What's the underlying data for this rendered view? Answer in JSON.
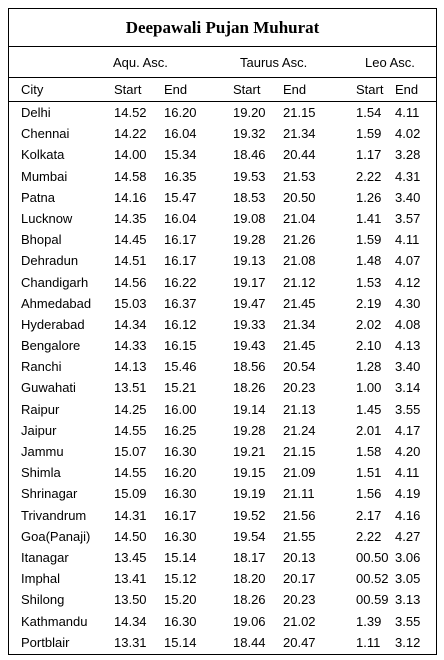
{
  "title": "Deepawali Pujan Muhurat",
  "ascendants": [
    "Aqu. Asc.",
    "Taurus Asc.",
    "Leo Asc."
  ],
  "columns": [
    "City",
    "Start",
    "End",
    "Start",
    "End",
    "Start",
    "End"
  ],
  "rows": [
    [
      "Delhi",
      "14.52",
      "16.20",
      "19.20",
      "21.15",
      "1.54",
      "4.11"
    ],
    [
      "Chennai",
      "14.22",
      "16.04",
      "19.32",
      "21.34",
      "1.59",
      "4.02"
    ],
    [
      "Kolkata",
      "14.00",
      "15.34",
      "18.46",
      "20.44",
      "1.17",
      "3.28"
    ],
    [
      "Mumbai",
      "14.58",
      "16.35",
      "19.53",
      "21.53",
      "2.22",
      "4.31"
    ],
    [
      "Patna",
      "14.16",
      "15.47",
      "18.53",
      "20.50",
      "1.26",
      "3.40"
    ],
    [
      "Lucknow",
      "14.35",
      "16.04",
      "19.08",
      "21.04",
      "1.41",
      "3.57"
    ],
    [
      "Bhopal",
      "14.45",
      "16.17",
      "19.28",
      "21.26",
      "1.59",
      "4.11"
    ],
    [
      "Dehradun",
      "14.51",
      "16.17",
      "19.13",
      "21.08",
      "1.48",
      "4.07"
    ],
    [
      "Chandigarh",
      "14.56",
      "16.22",
      "19.17",
      "21.12",
      "1.53",
      "4.12"
    ],
    [
      "Ahmedabad",
      "15.03",
      "16.37",
      "19.47",
      "21.45",
      "2.19",
      "4.30"
    ],
    [
      "Hyderabad",
      "14.34",
      "16.12",
      "19.33",
      "21.34",
      "2.02",
      "4.08"
    ],
    [
      "Bengalore",
      "14.33",
      "16.15",
      "19.43",
      "21.45",
      "2.10",
      "4.13"
    ],
    [
      "Ranchi",
      "14.13",
      "15.46",
      "18.56",
      "20.54",
      "1.28",
      "3.40"
    ],
    [
      "Guwahati",
      "13.51",
      "15.21",
      "18.26",
      "20.23",
      "1.00",
      "3.14"
    ],
    [
      "Raipur",
      "14.25",
      "16.00",
      "19.14",
      "21.13",
      "1.45",
      "3.55"
    ],
    [
      "Jaipur",
      "14.55",
      "16.25",
      "19.28",
      "21.24",
      "2.01",
      "4.17"
    ],
    [
      "Jammu",
      "15.07",
      "16.30",
      "19.21",
      "21.15",
      "1.58",
      "4.20"
    ],
    [
      "Shimla",
      "14.55",
      "16.20",
      "19.15",
      "21.09",
      "1.51",
      "4.11"
    ],
    [
      "Shrinagar",
      "15.09",
      "16.30",
      "19.19",
      "21.11",
      "1.56",
      "4.19"
    ],
    [
      "Trivandrum",
      "14.31",
      "16.17",
      "19.52",
      "21.56",
      "2.17",
      "4.16"
    ],
    [
      "Goa(Panaji)",
      "14.50",
      "16.30",
      "19.54",
      "21.55",
      "2.22",
      "4.27"
    ],
    [
      "Itanagar",
      "13.45",
      "15.14",
      "18.17",
      "20.13",
      "00.50",
      "3.06"
    ],
    [
      "Imphal",
      "13.41",
      "15.12",
      "18.20",
      "20.17",
      "00.52",
      "3.05"
    ],
    [
      "Shilong",
      "13.50",
      "15.20",
      "18.26",
      "20.23",
      "00.59",
      "3.13"
    ],
    [
      "Kathmandu",
      "14.34",
      "16.30",
      "19.06",
      "21.02",
      "1.39",
      "3.55"
    ],
    [
      "Portblair",
      "13.31",
      "15.14",
      "18.44",
      "20.47",
      "1.11",
      "3.12"
    ]
  ]
}
